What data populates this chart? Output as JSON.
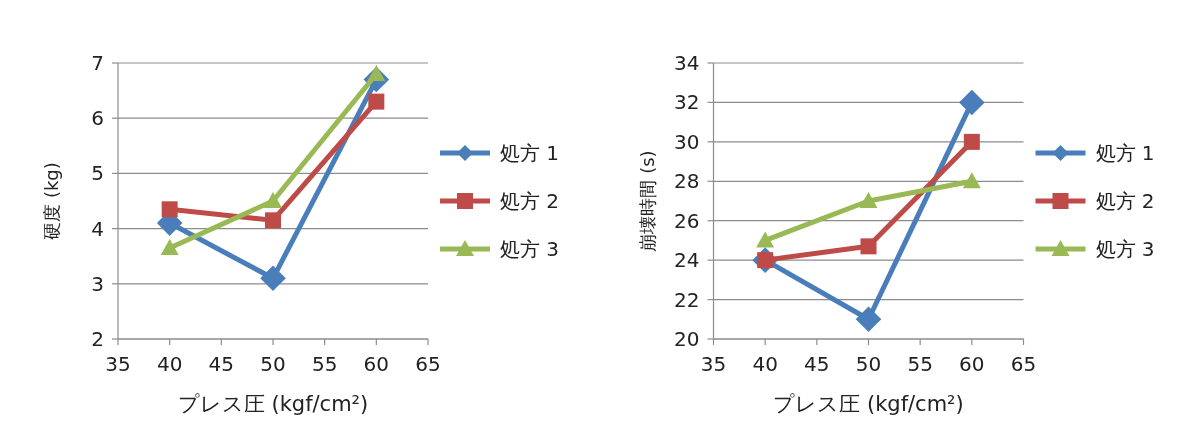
{
  "chart_data": [
    {
      "type": "line",
      "xlabel": "プレス圧 (kgf/cm²)",
      "ylabel": "硬度 (kg)",
      "x": [
        40,
        50,
        60
      ],
      "xlim": [
        35,
        65
      ],
      "xticks": [
        35,
        40,
        45,
        50,
        55,
        60,
        65
      ],
      "ylim": [
        2,
        7
      ],
      "yticks": [
        2,
        3,
        4,
        5,
        6,
        7
      ],
      "grid": "y",
      "legend": "right",
      "line_style": "solid",
      "series": [
        {
          "name": "処方 1",
          "color": "#4a7ebb",
          "marker": "diamond",
          "values": [
            4.1,
            3.1,
            6.7
          ]
        },
        {
          "name": "処方 2",
          "color": "#be4b48",
          "marker": "square",
          "values": [
            4.35,
            4.15,
            6.3
          ]
        },
        {
          "name": "処方 3",
          "color": "#98b954",
          "marker": "triangle",
          "values": [
            3.65,
            4.5,
            6.8
          ]
        }
      ]
    },
    {
      "type": "line",
      "xlabel": "プレス圧 (kgf/cm²)",
      "ylabel": "崩壊時間 (s)",
      "x": [
        40,
        50,
        60
      ],
      "xlim": [
        35,
        65
      ],
      "xticks": [
        35,
        40,
        45,
        50,
        55,
        60,
        65
      ],
      "ylim": [
        20,
        34
      ],
      "yticks": [
        20,
        22,
        24,
        26,
        28,
        30,
        32,
        34
      ],
      "grid": "y",
      "legend": "right",
      "line_style": "solid",
      "series": [
        {
          "name": "処方 1",
          "color": "#4a7ebb",
          "marker": "diamond",
          "values": [
            24,
            21,
            32
          ]
        },
        {
          "name": "処方 2",
          "color": "#be4b48",
          "marker": "square",
          "values": [
            24,
            24.7,
            30
          ]
        },
        {
          "name": "処方 3",
          "color": "#98b954",
          "marker": "triangle",
          "values": [
            25,
            27,
            28
          ]
        }
      ]
    }
  ]
}
